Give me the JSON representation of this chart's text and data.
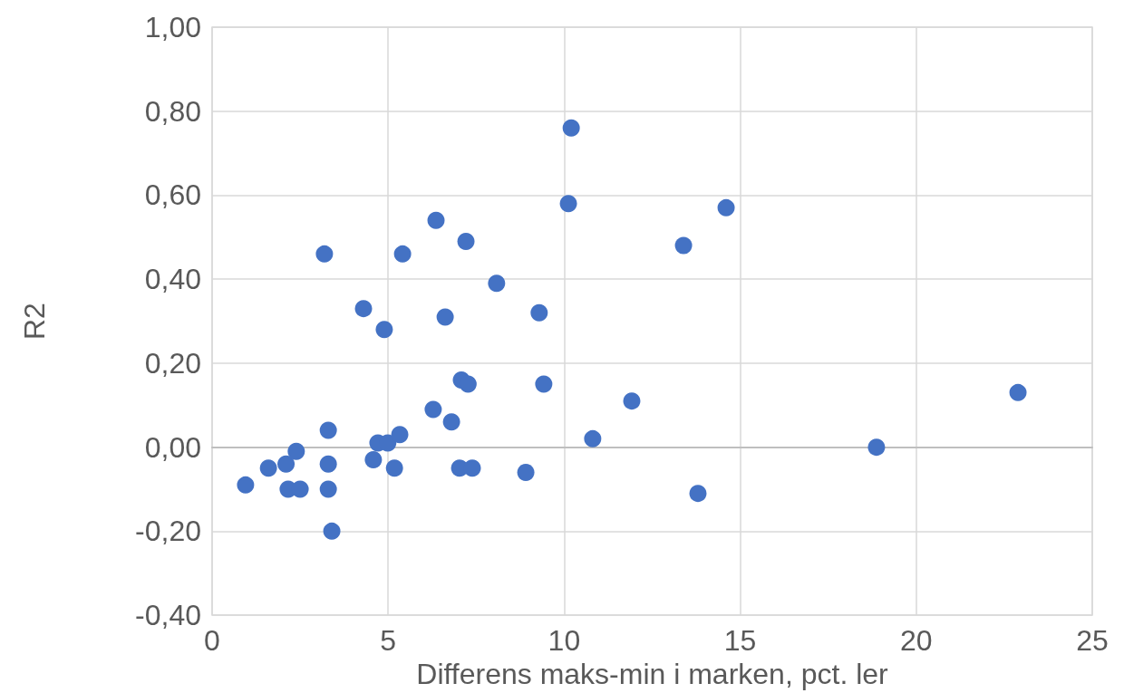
{
  "chart_data": {
    "type": "scatter",
    "xlabel": "Differens maks-min i marken, pct. ler",
    "ylabel": "R2",
    "x": [
      0.95,
      1.6,
      2.1,
      2.16,
      2.39,
      2.5,
      3.19,
      3.3,
      3.3,
      3.3,
      3.4,
      4.3,
      4.58,
      4.71,
      4.89,
      4.99,
      5.18,
      5.33,
      5.41,
      6.28,
      6.36,
      6.62,
      6.8,
      7.03,
      7.08,
      7.21,
      7.27,
      7.39,
      8.08,
      8.91,
      9.29,
      9.42,
      10.12,
      10.2,
      10.81,
      11.92,
      13.39,
      13.8,
      14.6,
      18.87,
      22.89
    ],
    "values": [
      -0.09,
      -0.05,
      -0.04,
      -0.1,
      -0.01,
      -0.1,
      0.46,
      0.04,
      -0.04,
      -0.1,
      -0.2,
      0.33,
      -0.03,
      0.01,
      0.28,
      0.01,
      -0.05,
      0.03,
      0.46,
      0.09,
      0.54,
      0.31,
      0.06,
      -0.05,
      0.16,
      0.49,
      0.15,
      -0.05,
      0.39,
      -0.06,
      0.32,
      0.15,
      0.58,
      0.76,
      0.02,
      0.11,
      0.48,
      -0.11,
      0.57,
      0,
      0.13
    ],
    "color": "#4472c4",
    "marker": "circle",
    "grid": true,
    "xlim": [
      0,
      25
    ],
    "xticks": [
      0,
      5,
      10,
      15,
      20,
      25
    ],
    "ylim": [
      -0.4,
      1.0
    ],
    "yticks": [
      {
        "value": -0.4,
        "label": "-0,40"
      },
      {
        "value": -0.2,
        "label": "-0,20"
      },
      {
        "value": 0,
        "label": "0,00"
      },
      {
        "value": 0.2,
        "label": "0,20"
      },
      {
        "value": 0.4,
        "label": "0,40"
      },
      {
        "value": 0.6,
        "label": "0,60"
      },
      {
        "value": 0.8,
        "label": "0,80"
      },
      {
        "value": 1.0,
        "label": "1,00"
      }
    ]
  }
}
